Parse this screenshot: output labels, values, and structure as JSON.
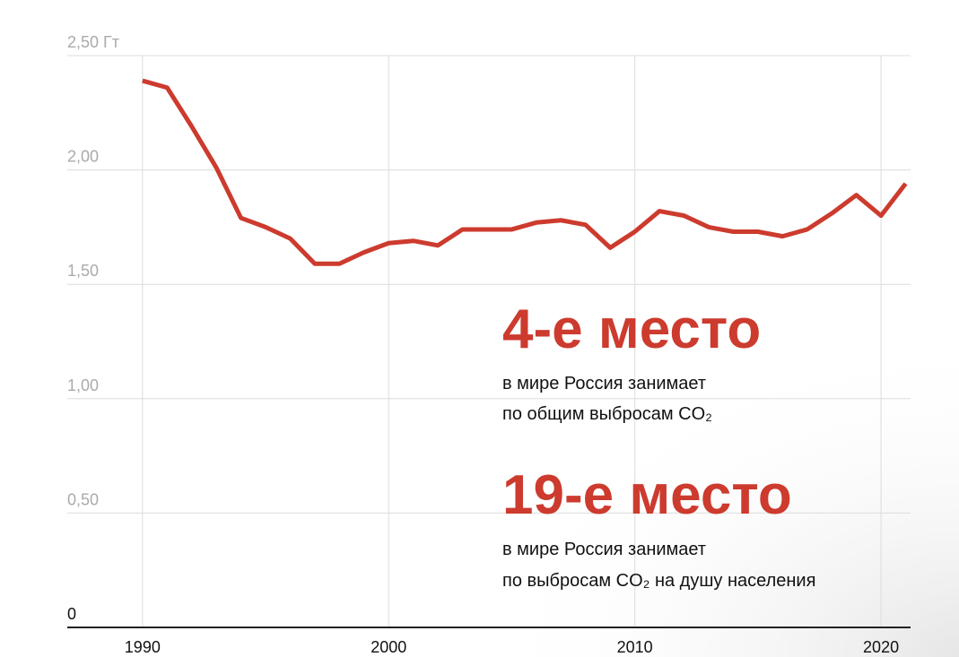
{
  "chart_data": {
    "type": "line",
    "x": [
      1990,
      1991,
      1992,
      1993,
      1994,
      1995,
      1996,
      1997,
      1998,
      1999,
      2000,
      2001,
      2002,
      2003,
      2004,
      2005,
      2006,
      2007,
      2008,
      2009,
      2010,
      2011,
      2012,
      2013,
      2014,
      2015,
      2016,
      2017,
      2018,
      2019,
      2020,
      2021
    ],
    "series": [
      {
        "color": "#cc3b2e",
        "values": [
          2.39,
          2.36,
          2.19,
          2.01,
          1.79,
          1.75,
          1.7,
          1.59,
          1.59,
          1.64,
          1.68,
          1.69,
          1.67,
          1.74,
          1.74,
          1.74,
          1.77,
          1.78,
          1.76,
          1.66,
          1.73,
          1.82,
          1.8,
          1.75,
          1.73,
          1.73,
          1.71,
          1.74,
          1.81,
          1.89,
          1.8,
          1.94
        ]
      }
    ],
    "xlim": [
      1987.2,
      2021.2
    ],
    "xticks": [
      1990,
      2000,
      2010,
      2020
    ],
    "ylim": [
      0,
      2.5
    ],
    "yticks": [
      0,
      {
        "value": 0.5,
        "label": "0,50"
      },
      {
        "value": 1,
        "label": "1,00"
      },
      {
        "value": 1.5,
        "label": "1,50"
      },
      {
        "value": 2,
        "label": "2,00"
      },
      {
        "value": 2.5,
        "label": "2,50 Гт"
      }
    ],
    "grid": true,
    "annotations": [
      "4-е место",
      "в мире Россия занимает",
      "по общим выбросам CO₂",
      "19-е место",
      "в мире Россия занимает",
      "по выбросам CO₂ на душу населения"
    ]
  }
}
